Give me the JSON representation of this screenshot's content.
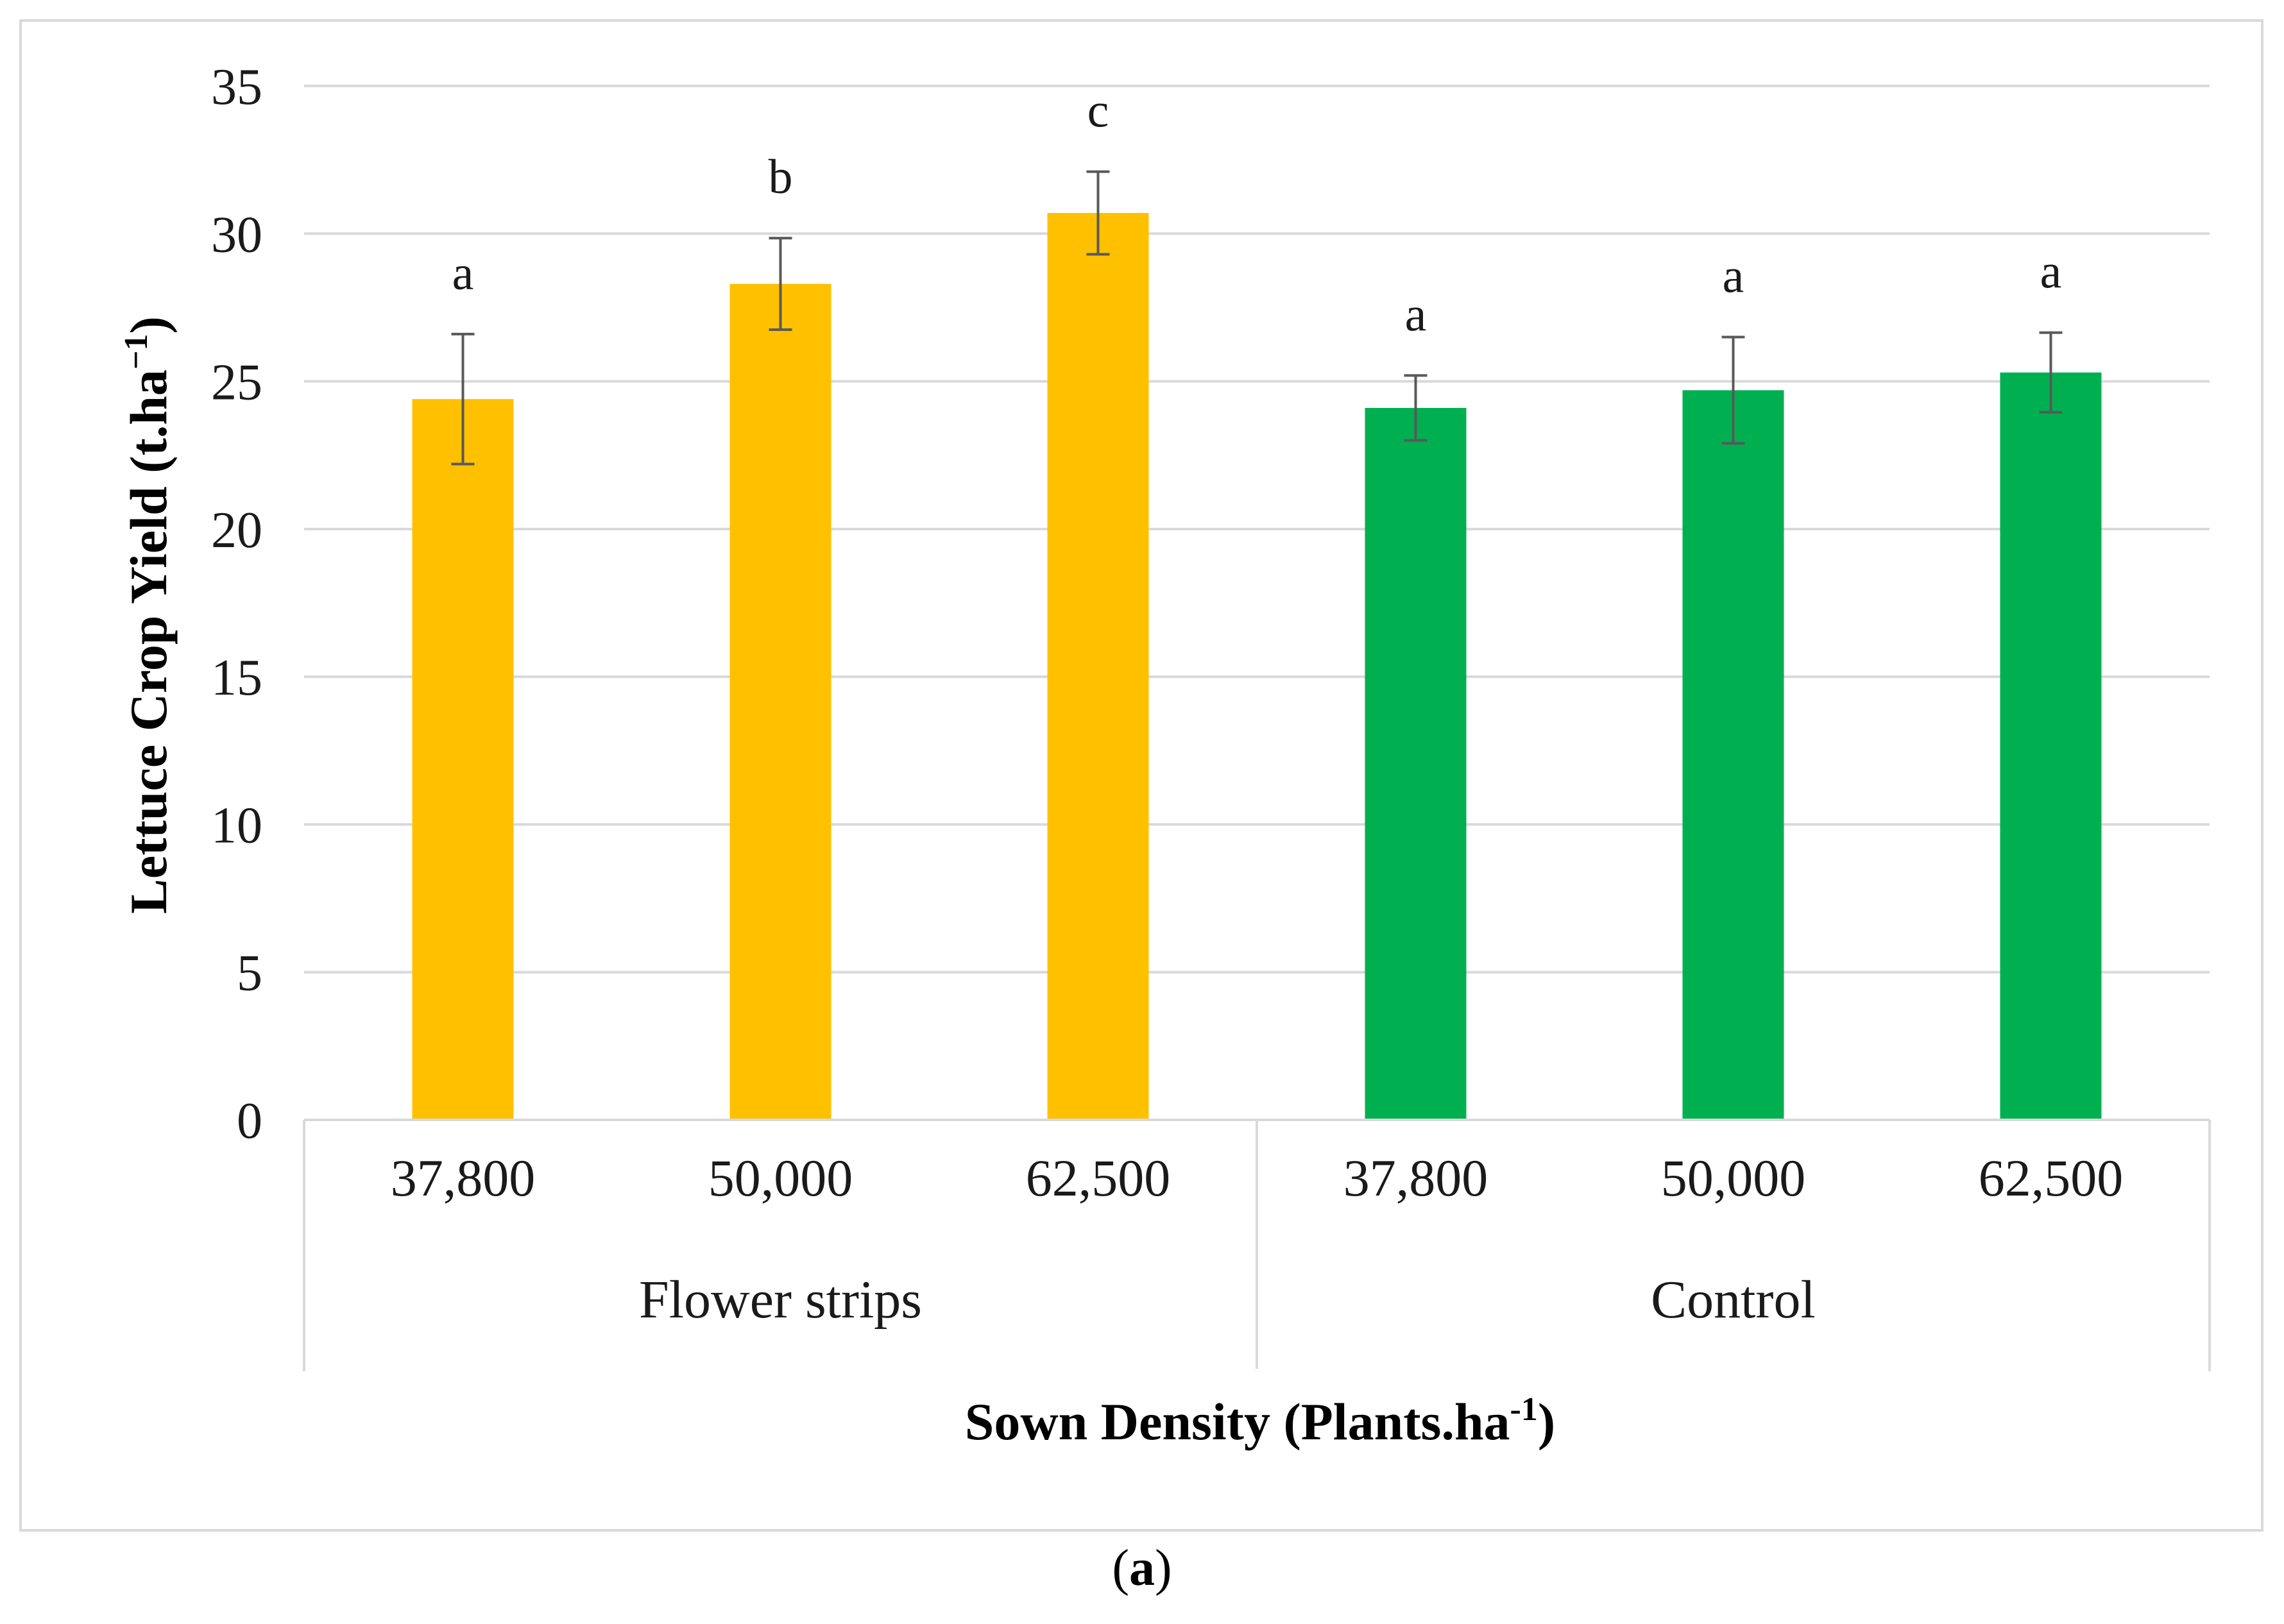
{
  "caption": {
    "open": "(",
    "letter": "a",
    "close": ")"
  },
  "chart_data": {
    "type": "bar",
    "ylabel": {
      "main": "Lettuce Crop Yield (t.ha",
      "sup": "−1",
      "end": ")"
    },
    "xlabel": {
      "main": "Sown Density (Plants.ha",
      "sup": "-1",
      "end": ")"
    },
    "ylim": [
      0,
      35
    ],
    "y_ticks": [
      0,
      5,
      10,
      15,
      20,
      25,
      30,
      35
    ],
    "grid": true,
    "groups": [
      {
        "name": "Flower strips",
        "color": "#FFC000",
        "count": 3
      },
      {
        "name": "Control",
        "color": "#00B050",
        "count": 3
      }
    ],
    "categories": [
      "37,800",
      "50,000",
      "62,500",
      "37,800",
      "50,000",
      "62,500"
    ],
    "values": [
      24.4,
      28.3,
      30.7,
      24.1,
      24.7,
      25.3
    ],
    "errors": [
      2.2,
      1.55,
      1.4,
      1.1,
      1.8,
      1.35
    ],
    "significance_letters": [
      "a",
      "b",
      "c",
      "a",
      "a",
      "a"
    ],
    "colors": [
      "#FFC000",
      "#FFC000",
      "#FFC000",
      "#00B050",
      "#00B050",
      "#00B050"
    ]
  }
}
